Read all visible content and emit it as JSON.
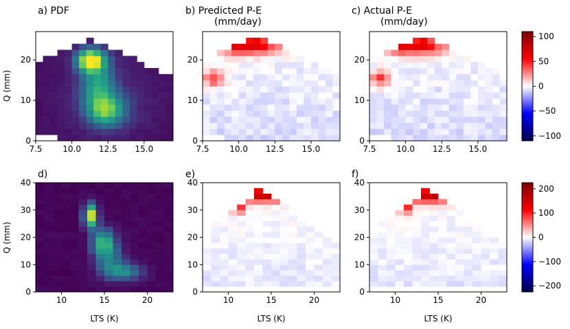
{
  "figure": {
    "panel_titles": {
      "a": "a) PDF",
      "b_line1": "b) Predicted P-E",
      "b_line2": "(mm/day)",
      "c_line1": "c) Actual P-E",
      "c_line2": "(mm/day)",
      "d": "d)",
      "e": "e)",
      "f": "f)"
    },
    "ylabel": "Q (mm)",
    "xlabel": "LTS (K)"
  },
  "chart_data": [
    {
      "id": "a",
      "type": "heatmap",
      "title": "a) PDF",
      "ylabel": "Q (mm)",
      "xlabel": "",
      "colormap": "viridis",
      "x_range": [
        7.5,
        17
      ],
      "y_range": [
        0,
        27
      ],
      "xticks": [
        "7.5",
        "10.0",
        "12.5",
        "15.0"
      ],
      "yticks": [
        "0",
        "10",
        "20"
      ],
      "occupied": "Q ≈ 0–26 mm, LTS ≈ 7.5–17 K; highest density near LTS 11–12 K, Q 18–22 mm, secondary maximum near LTS 12–13 K, Q 5–9 mm"
    },
    {
      "id": "b",
      "type": "heatmap",
      "title": "b) Predicted P-E (mm/day)",
      "xlabel": "",
      "ylabel": "",
      "colormap": "seismic",
      "x_range": [
        7.5,
        17
      ],
      "y_range": [
        0,
        27
      ],
      "xticks": [
        "7.5",
        "10.0",
        "12.5",
        "15.0"
      ],
      "yticks": [
        "0",
        "10",
        "20"
      ],
      "pattern": "strong positive values (up to ~100) at Q ≈ 22–26 mm, LTS ≈ 9–13 K; near-zero slightly negative values at low Q"
    },
    {
      "id": "c",
      "type": "heatmap",
      "title": "c) Actual P-E (mm/day)",
      "xlabel": "",
      "ylabel": "",
      "colormap": "seismic",
      "x_range": [
        7.5,
        17
      ],
      "y_range": [
        0,
        27
      ],
      "xticks": [
        "7.5",
        "10.0",
        "12.5",
        "15.0"
      ],
      "yticks": [
        "0",
        "10",
        "20"
      ],
      "pattern": "strong positive values (up to ~100) at Q ≈ 22–26 mm, LTS ≈ 9–13 K; near-zero slightly negative values at low Q"
    },
    {
      "id": "colorbar_top",
      "type": "colorbar",
      "range": [
        -110,
        110
      ],
      "ticks": [
        100,
        50,
        0,
        -50,
        -100
      ],
      "tick_labels": [
        "100",
        "50",
        "0",
        "−50",
        "−100"
      ]
    },
    {
      "id": "d",
      "type": "heatmap",
      "title": "d)",
      "ylabel": "Q (mm)",
      "xlabel": "LTS (K)",
      "colormap": "viridis",
      "x_range": [
        7,
        23
      ],
      "y_range": [
        0,
        40
      ],
      "xticks": [
        "10",
        "15",
        "20"
      ],
      "yticks": [
        "0",
        "10",
        "20",
        "30",
        "40"
      ],
      "occupied": "Q ≈ 3–32 mm, LTS ≈ 12–21 K; highest density near LTS 13–14 K, Q 25–31 mm, diagonal band toward LTS 17–19 K, Q 5–10 mm"
    },
    {
      "id": "e",
      "type": "heatmap",
      "title": "e)",
      "ylabel": "",
      "xlabel": "LTS (K)",
      "colormap": "seismic",
      "x_range": [
        7,
        23
      ],
      "y_range": [
        0,
        40
      ],
      "xticks": [
        "10",
        "15",
        "20"
      ],
      "yticks": [
        "0",
        "10",
        "20",
        "30",
        "40"
      ],
      "pattern": "strong positive values (up to ~220) at Q ≈ 29–37 mm, LTS ≈ 11–17 K; near-zero slightly negative values elsewhere"
    },
    {
      "id": "f",
      "type": "heatmap",
      "title": "f)",
      "ylabel": "",
      "xlabel": "LTS (K)",
      "colormap": "seismic",
      "x_range": [
        7,
        23
      ],
      "y_range": [
        0,
        40
      ],
      "xticks": [
        "10",
        "15",
        "20"
      ],
      "yticks": [
        "0",
        "10",
        "20",
        "30",
        "40"
      ],
      "pattern": "strong positive values (up to ~220) at Q ≈ 29–37 mm, LTS ≈ 11–17 K; near-zero slightly negative values elsewhere"
    },
    {
      "id": "colorbar_bottom",
      "type": "colorbar",
      "range": [
        -225,
        225
      ],
      "ticks": [
        200,
        100,
        0,
        -100,
        -200
      ],
      "tick_labels": [
        "200",
        "100",
        "0",
        "−100",
        "−200"
      ]
    }
  ]
}
